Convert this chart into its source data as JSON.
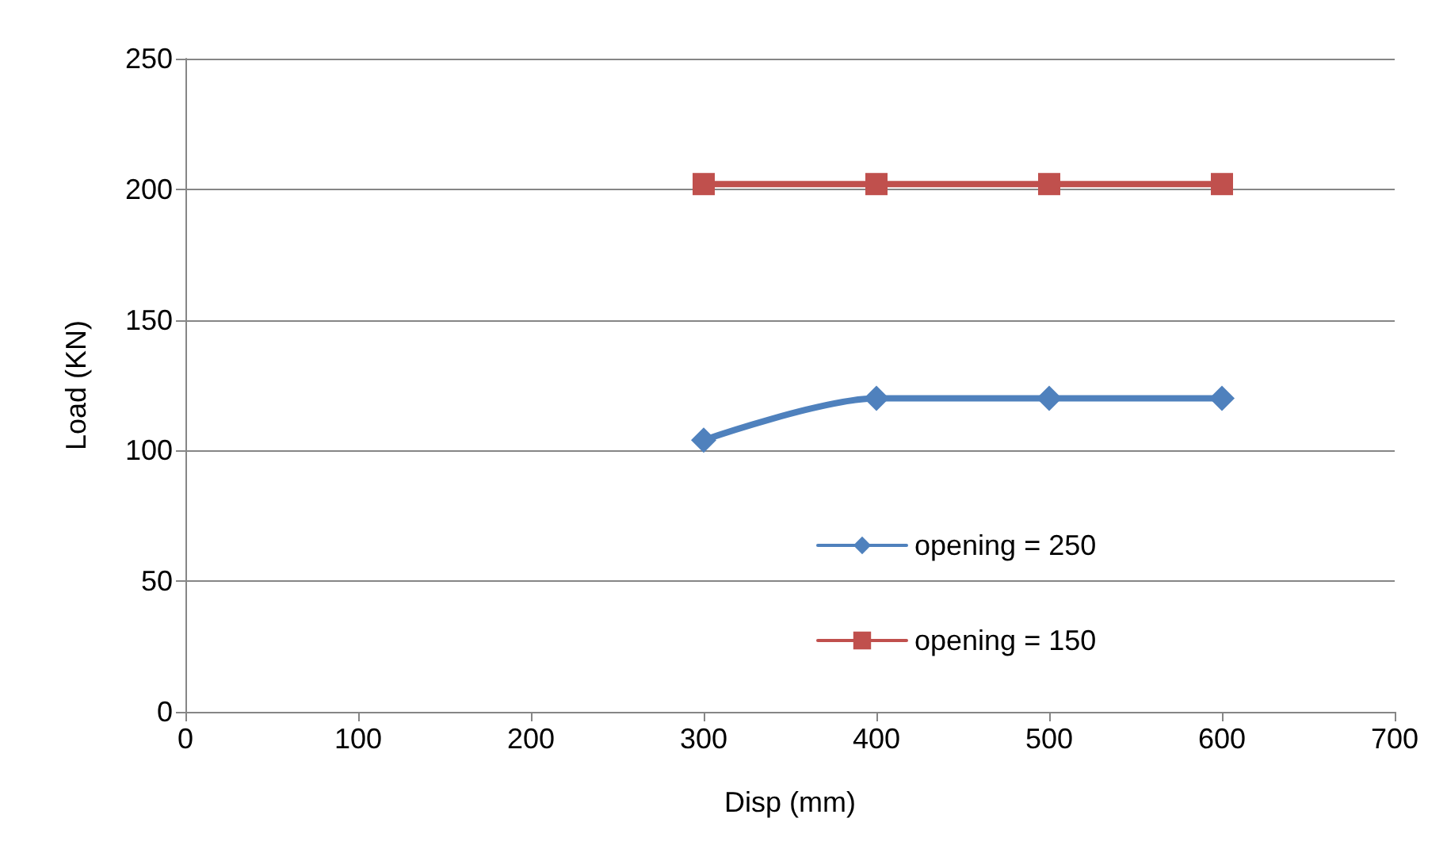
{
  "chart_data": {
    "type": "line",
    "xlabel": "Disp (mm)",
    "ylabel": "Load (KN)",
    "x": [
      300,
      400,
      500,
      600
    ],
    "series": [
      {
        "name": "opening = 250",
        "color": "#4f81bd",
        "marker": "diamond",
        "values": [
          104,
          120,
          120,
          120
        ]
      },
      {
        "name": "opening = 150",
        "color": "#c0504d",
        "marker": "square",
        "values": [
          202,
          202,
          202,
          202
        ]
      }
    ],
    "xlim": [
      0,
      700
    ],
    "xticks": [
      0,
      100,
      200,
      300,
      400,
      500,
      600,
      700
    ],
    "ylim": [
      0,
      250
    ],
    "yticks": [
      0,
      50,
      100,
      150,
      200,
      250
    ],
    "grid": "y",
    "legend": "bottom right",
    "line_style": "solid"
  }
}
